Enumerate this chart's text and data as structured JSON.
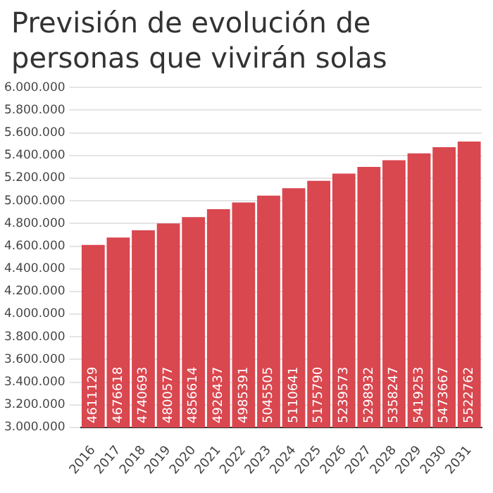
{
  "chart_data": {
    "type": "bar",
    "title": "Previsión de evolución de personas que vivirán solas",
    "categories": [
      "2016",
      "2017",
      "2018",
      "2019",
      "2020",
      "2021",
      "2022",
      "2023",
      "2024",
      "2025",
      "2026",
      "2027",
      "2028",
      "2029",
      "2030",
      "2031"
    ],
    "values": [
      4611129,
      4676618,
      4740693,
      4800577,
      4856614,
      4926437,
      4985391,
      5045505,
      5110641,
      5175790,
      5239573,
      5298932,
      5358247,
      5419253,
      5473667,
      5522762
    ],
    "color": "#d9474f",
    "data_labels": true,
    "grid": "y",
    "ylim": [
      3000000,
      6000000
    ],
    "yticks": [
      {
        "value": 3000000,
        "label": "3.000.000"
      },
      {
        "value": 3200000,
        "label": "3.200.000"
      },
      {
        "value": 3400000,
        "label": "3.400.000"
      },
      {
        "value": 3600000,
        "label": "3.600.000"
      },
      {
        "value": 3800000,
        "label": "3.800.000"
      },
      {
        "value": 4000000,
        "label": "4.000.000"
      },
      {
        "value": 4200000,
        "label": "4.200.000"
      },
      {
        "value": 4400000,
        "label": "4.400.000"
      },
      {
        "value": 4600000,
        "label": "4.600.000"
      },
      {
        "value": 4800000,
        "label": "4.800.000"
      },
      {
        "value": 5000000,
        "label": "5.000.000"
      },
      {
        "value": 5200000,
        "label": "5.200.000"
      },
      {
        "value": 5400000,
        "label": "5.400.000"
      },
      {
        "value": 5600000,
        "label": "5.600.000"
      },
      {
        "value": 5800000,
        "label": "5.800.000"
      },
      {
        "value": 6000000,
        "label": "6.000.000"
      }
    ]
  }
}
